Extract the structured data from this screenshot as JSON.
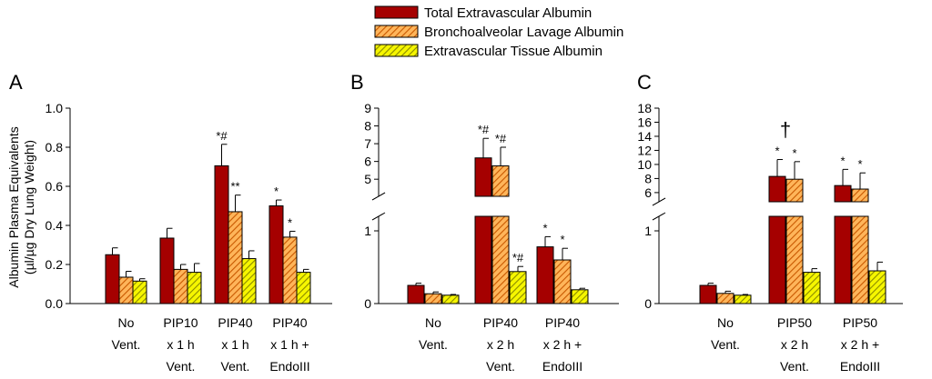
{
  "legend": {
    "entries": [
      {
        "label": "Total Extravascular Albumin",
        "pattern": "solid"
      },
      {
        "label": "Bronchoalveolar Lavage Albumin",
        "pattern": "orange-hatch"
      },
      {
        "label": "Extravascular Tissue Albumin",
        "pattern": "yellow-hatch"
      }
    ]
  },
  "colors": {
    "total": "#A50000",
    "bal_fill": "#FFB55A",
    "bal_stripe": "#C85800",
    "tissue_fill": "#F6F600",
    "tissue_stripe": "#8A8A00",
    "axis": "#000000"
  },
  "y_axis_label_line1": "Albumin Plasma Equivalents",
  "y_axis_label_line2": "(µl/µg Dry Lung Weight)",
  "chart_data": [
    {
      "panel": "A",
      "type": "bar",
      "series_names": [
        "Total Extravascular Albumin",
        "Bronchoalveolar Lavage Albumin",
        "Extravascular Tissue Albumin"
      ],
      "groups": [
        {
          "label_lines": [
            "No",
            "Vent."
          ],
          "values": [
            0.25,
            0.135,
            0.115
          ],
          "errors": [
            0.035,
            0.03,
            0.012
          ],
          "annotations": [
            "",
            "",
            ""
          ]
        },
        {
          "label_lines": [
            "PIP10",
            "x 1 h",
            "Vent."
          ],
          "values": [
            0.335,
            0.175,
            0.16
          ],
          "errors": [
            0.05,
            0.025,
            0.045
          ],
          "annotations": [
            "",
            "",
            ""
          ]
        },
        {
          "label_lines": [
            "PIP40",
            "x 1 h",
            "Vent."
          ],
          "values": [
            0.705,
            0.47,
            0.23
          ],
          "errors": [
            0.11,
            0.085,
            0.04
          ],
          "annotations": [
            "*#",
            "**",
            ""
          ]
        },
        {
          "label_lines": [
            "PIP40",
            "x 1 h +",
            "EndoIII"
          ],
          "values": [
            0.5,
            0.34,
            0.16
          ],
          "errors": [
            0.03,
            0.03,
            0.015
          ],
          "annotations": [
            "*",
            "*",
            ""
          ]
        }
      ],
      "yticks": [
        "0.0",
        "0.2",
        "0.4",
        "0.6",
        "0.8",
        "1.0"
      ],
      "ylim": [
        0,
        1.0
      ]
    },
    {
      "panel": "B",
      "type": "bar",
      "series_names": [
        "Total Extravascular Albumin",
        "Bronchoalveolar Lavage Albumin",
        "Extravascular Tissue Albumin"
      ],
      "axis_break": {
        "lower_range": [
          0,
          1.05
        ],
        "upper_range": [
          4.6,
          9
        ]
      },
      "groups": [
        {
          "label_lines": [
            "No",
            "Vent."
          ],
          "values": [
            0.25,
            0.135,
            0.115
          ],
          "errors": [
            0.03,
            0.025,
            0.01
          ],
          "annotations": [
            "",
            "",
            ""
          ]
        },
        {
          "label_lines": [
            "PIP40",
            "x 2 h",
            "Vent."
          ],
          "values": [
            6.2,
            5.75,
            0.44
          ],
          "errors": [
            1.1,
            1.05,
            0.07
          ],
          "annotations": [
            "*#",
            "*#",
            "*#"
          ]
        },
        {
          "label_lines": [
            "PIP40",
            "x 2 h +",
            "EndoIII"
          ],
          "values": [
            0.78,
            0.6,
            0.19
          ],
          "errors": [
            0.14,
            0.16,
            0.02
          ],
          "annotations": [
            "*",
            "*",
            ""
          ]
        }
      ],
      "yticks_lower": [
        "0",
        "1"
      ],
      "yticks_upper": [
        "5",
        "6",
        "7",
        "8",
        "9"
      ]
    },
    {
      "panel": "C",
      "type": "bar",
      "series_names": [
        "Total Extravascular Albumin",
        "Bronchoalveolar Lavage Albumin",
        "Extravascular Tissue Albumin"
      ],
      "axis_break": {
        "lower_range": [
          0,
          1.05
        ],
        "upper_range": [
          5.6,
          18
        ]
      },
      "groups": [
        {
          "label_lines": [
            "No",
            "Vent."
          ],
          "values": [
            0.25,
            0.14,
            0.115
          ],
          "errors": [
            0.03,
            0.03,
            0.01
          ],
          "annotations": [
            "",
            "",
            ""
          ]
        },
        {
          "label_lines": [
            "PIP50",
            "x 2 h",
            "Vent."
          ],
          "values": [
            8.3,
            7.9,
            0.43
          ],
          "errors": [
            2.4,
            2.5,
            0.05
          ],
          "annotations": [
            "*",
            "*",
            ""
          ]
        },
        {
          "label_lines": [
            "PIP50",
            "x 2 h +",
            "EndoIII"
          ],
          "values": [
            7.0,
            6.5,
            0.45
          ],
          "errors": [
            2.3,
            2.3,
            0.12
          ],
          "annotations": [
            "*",
            "*",
            ""
          ]
        }
      ],
      "group_annotation": {
        "group_index": 1,
        "symbol": "†"
      },
      "yticks_lower": [
        "0",
        "1"
      ],
      "yticks_upper": [
        "6",
        "8",
        "10",
        "12",
        "14",
        "16",
        "18"
      ]
    }
  ]
}
